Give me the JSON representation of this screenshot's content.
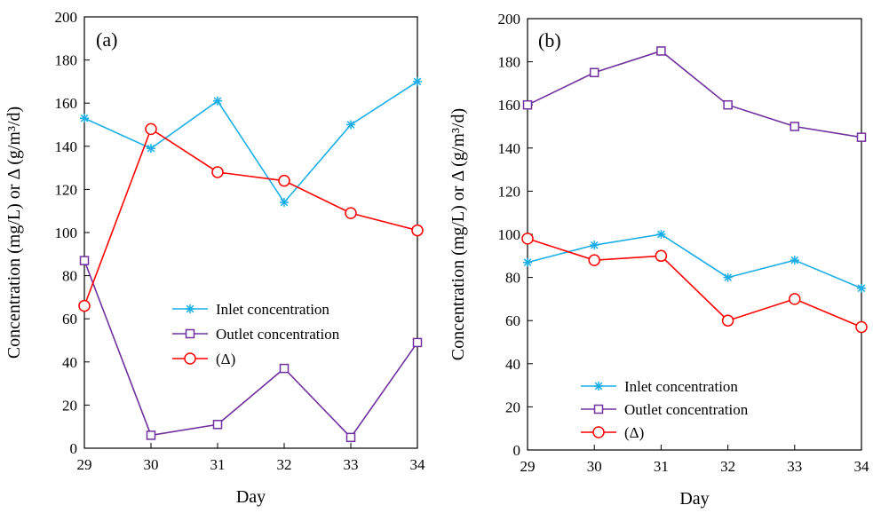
{
  "chart_data": [
    {
      "type": "line",
      "panel_label": "(a)",
      "xlabel": "Day",
      "ylabel": "Concentration (mg/L) or Δ (g/m³/d)",
      "x": [
        29,
        30,
        31,
        32,
        33,
        34
      ],
      "xlim": [
        29,
        34
      ],
      "ylim": [
        0,
        200
      ],
      "x_ticks": [
        "29",
        "30",
        "31",
        "32",
        "33",
        "34"
      ],
      "y_ticks": [
        "0",
        "20",
        "40",
        "60",
        "80",
        "100",
        "120",
        "140",
        "160",
        "180",
        "200"
      ],
      "grid": false,
      "legend_position": "center-right",
      "series": [
        {
          "name": "Inlet concentration",
          "values": [
            153,
            139,
            161,
            114,
            150,
            170
          ],
          "color": "#1aaee8",
          "marker": "asterisk"
        },
        {
          "name": "Outlet concentration",
          "values": [
            87,
            6,
            11,
            37,
            5,
            49
          ],
          "color": "#7030a0",
          "marker": "square"
        },
        {
          "name": "(Δ)",
          "values": [
            66,
            148,
            128,
            124,
            109,
            101
          ],
          "color": "#ff0000",
          "marker": "circle"
        }
      ]
    },
    {
      "type": "line",
      "panel_label": "(b)",
      "xlabel": "Day",
      "ylabel": "Concentration (mg/L) or Δ (g/m³/d)",
      "x": [
        29,
        30,
        31,
        32,
        33,
        34
      ],
      "xlim": [
        29,
        34
      ],
      "ylim": [
        0,
        200
      ],
      "x_ticks": [
        "29",
        "30",
        "31",
        "32",
        "33",
        "34"
      ],
      "y_ticks": [
        "0",
        "20",
        "40",
        "60",
        "80",
        "100",
        "120",
        "140",
        "160",
        "180",
        "200"
      ],
      "grid": false,
      "legend_position": "bottom-center",
      "series": [
        {
          "name": "Inlet concentration",
          "values": [
            87,
            95,
            100,
            80,
            88,
            75
          ],
          "color": "#1aaee8",
          "marker": "asterisk"
        },
        {
          "name": "Outlet concentration",
          "values": [
            160,
            175,
            185,
            160,
            150,
            145
          ],
          "color": "#7030a0",
          "marker": "square"
        },
        {
          "name": "(Δ)",
          "values": [
            98,
            88,
            90,
            60,
            70,
            57
          ],
          "color": "#ff0000",
          "marker": "circle"
        }
      ]
    }
  ]
}
